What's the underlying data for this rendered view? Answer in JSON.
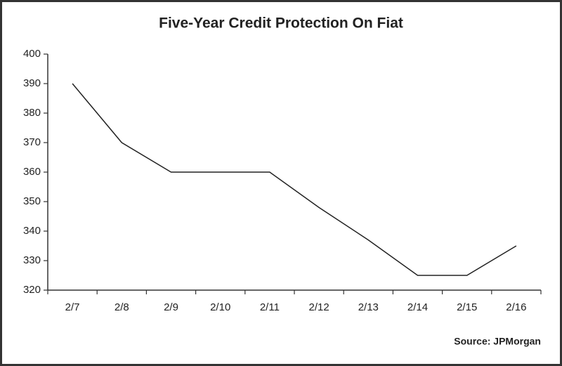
{
  "chart_data": {
    "type": "line",
    "title": "Five-Year Credit Protection On Fiat",
    "categories": [
      "2/7",
      "2/8",
      "2/9",
      "2/10",
      "2/11",
      "2/12",
      "2/13",
      "2/14",
      "2/15",
      "2/16"
    ],
    "values": [
      390,
      370,
      360,
      360,
      360,
      348,
      337,
      325,
      325,
      335
    ],
    "color": "#222222",
    "ylim": [
      320,
      400
    ],
    "yticks": [
      320,
      330,
      340,
      350,
      360,
      370,
      380,
      390,
      400
    ],
    "grid": false,
    "source": "Source: JPMorgan"
  }
}
